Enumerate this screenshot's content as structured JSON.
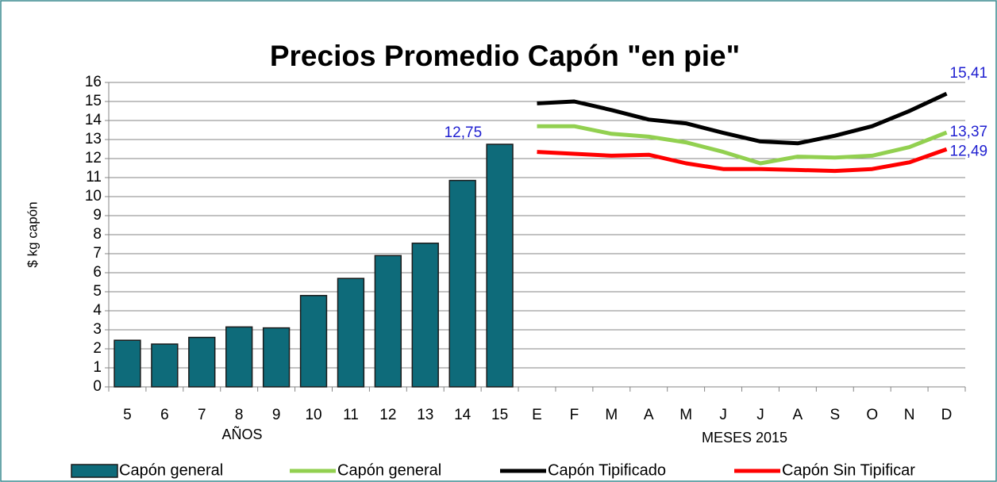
{
  "chart_data": {
    "type": "bar-line",
    "title": "Precios Promedio Capón \"en pie\"",
    "y_axis_label": "$ kg capón",
    "x_axis_labels": [
      "AÑOS",
      "MESES 2015"
    ],
    "categories": [
      "5",
      "6",
      "7",
      "8",
      "9",
      "10",
      "11",
      "12",
      "13",
      "14",
      "15",
      "E",
      "F",
      "M",
      "A",
      "M",
      "J",
      "J",
      "A",
      "S",
      "O",
      "N",
      "D"
    ],
    "series": [
      {
        "name": "Capón general",
        "type": "bar",
        "color": "#0e6b7a",
        "values": [
          2.45,
          2.25,
          2.6,
          3.15,
          3.1,
          4.8,
          5.7,
          6.9,
          7.55,
          10.85,
          12.75,
          null,
          null,
          null,
          null,
          null,
          null,
          null,
          null,
          null,
          null,
          null,
          null
        ],
        "value_labels": [
          null,
          null,
          null,
          null,
          null,
          null,
          null,
          null,
          null,
          null,
          "12,75",
          null,
          null,
          null,
          null,
          null,
          null,
          null,
          null,
          null,
          null,
          null,
          null
        ]
      },
      {
        "name": "Capón general",
        "type": "line",
        "color": "#92d050",
        "values": [
          null,
          null,
          null,
          null,
          null,
          null,
          null,
          null,
          null,
          null,
          null,
          13.7,
          13.7,
          13.3,
          13.15,
          12.85,
          12.35,
          11.75,
          12.1,
          12.05,
          12.15,
          12.6,
          13.37
        ],
        "value_labels": [
          null,
          null,
          null,
          null,
          null,
          null,
          null,
          null,
          null,
          null,
          null,
          null,
          null,
          null,
          null,
          null,
          null,
          null,
          null,
          null,
          null,
          null,
          "13,37"
        ]
      },
      {
        "name": "Capón Tipificado",
        "type": "line",
        "color": "#000000",
        "values": [
          null,
          null,
          null,
          null,
          null,
          null,
          null,
          null,
          null,
          null,
          null,
          14.9,
          15.0,
          14.55,
          14.05,
          13.85,
          13.35,
          12.9,
          12.8,
          13.2,
          13.7,
          14.5,
          15.41
        ],
        "value_labels": [
          null,
          null,
          null,
          null,
          null,
          null,
          null,
          null,
          null,
          null,
          null,
          null,
          null,
          null,
          null,
          null,
          null,
          null,
          null,
          null,
          null,
          null,
          "15,41"
        ]
      },
      {
        "name": "Capón Sin Tipificar",
        "type": "line",
        "color": "#ff0000",
        "values": [
          null,
          null,
          null,
          null,
          null,
          null,
          null,
          null,
          null,
          null,
          null,
          12.35,
          12.25,
          12.15,
          12.2,
          11.75,
          11.45,
          11.45,
          11.4,
          11.35,
          11.45,
          11.8,
          12.49
        ],
        "value_labels": [
          null,
          null,
          null,
          null,
          null,
          null,
          null,
          null,
          null,
          null,
          null,
          null,
          null,
          null,
          null,
          null,
          null,
          null,
          null,
          null,
          null,
          null,
          "12,49"
        ]
      }
    ],
    "ylim": [
      0,
      16
    ],
    "yticks": [
      0,
      1,
      2,
      3,
      4,
      5,
      6,
      7,
      8,
      9,
      10,
      11,
      12,
      13,
      14,
      15,
      16
    ],
    "grid": true,
    "legend": "bottom"
  }
}
